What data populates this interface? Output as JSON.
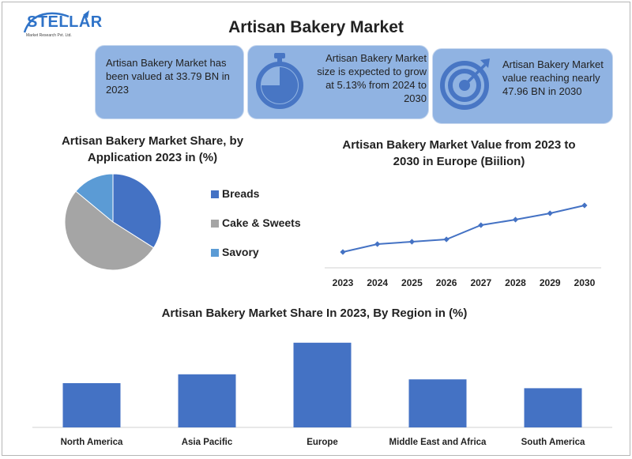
{
  "header": {
    "logo_text": "STELLAR",
    "logo_sub": "Market Research Pvt. Ltd.",
    "title": "Artisan Bakery Market"
  },
  "stats": [
    {
      "text": "Artisan Bakery Market has been valued at 33.79 BN in 2023",
      "icon": "none"
    },
    {
      "text": "Artisan Bakery Market size is expected to grow at 5.13% from 2024 to 2030",
      "icon": "stopwatch-icon"
    },
    {
      "text": "Artisan Bakery Market value reaching nearly 47.96 BN in 2030",
      "icon": "target-icon"
    }
  ],
  "colors": {
    "card_bg": "#90b3e2",
    "icon_blue": "#4876c4",
    "breads": "#4472c4",
    "cake": "#a5a5a5",
    "savory": "#5b9bd5",
    "line": "#4472c4",
    "bar": "#4472c4"
  },
  "chart_data": [
    {
      "type": "pie",
      "title": "Artisan Bakery Market Share, by Application  2023 in (%)",
      "categories": [
        "Breads",
        "Cake & Sweets",
        "Savory"
      ],
      "values": [
        34,
        52,
        14
      ],
      "legend": "right"
    },
    {
      "type": "line",
      "title": "Artisan Bakery Market Value from 2023 to 2030 in Europe (Biilion)",
      "x": [
        "2023",
        "2024",
        "2025",
        "2026",
        "2027",
        "2028",
        "2029",
        "2030"
      ],
      "values": [
        1.0,
        2.0,
        2.3,
        2.6,
        4.4,
        5.1,
        5.9,
        6.9
      ],
      "ylim": [
        0,
        10
      ],
      "grid": false,
      "markers": "diamond"
    },
    {
      "type": "bar",
      "title": "Artisan Bakery Market Share In 2023, By Region in (%)",
      "categories": [
        "North America",
        "Asia Pacific",
        "Europe",
        "Middle East and Africa",
        "South America"
      ],
      "values": [
        17.5,
        21,
        33.5,
        19,
        15.5
      ],
      "ylim": [
        0,
        35
      ],
      "grid": false
    }
  ]
}
